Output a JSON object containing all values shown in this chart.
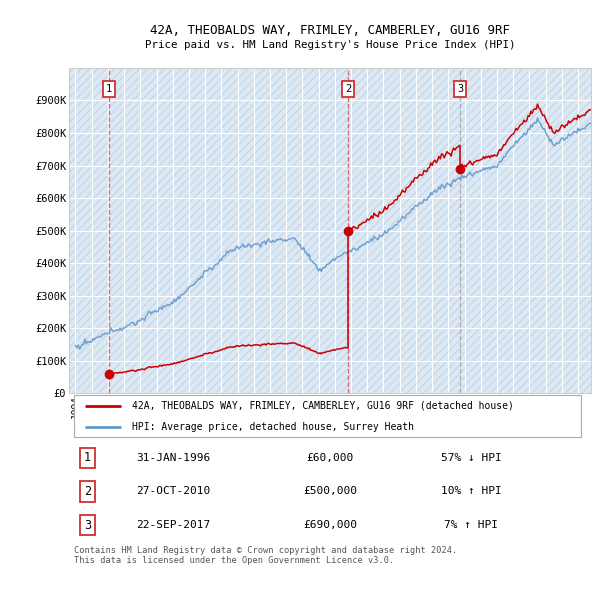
{
  "title1": "42A, THEOBALDS WAY, FRIMLEY, CAMBERLEY, GU16 9RF",
  "title2": "Price paid vs. HM Land Registry's House Price Index (HPI)",
  "ylim": [
    0,
    1000000
  ],
  "yticks": [
    0,
    100000,
    200000,
    300000,
    400000,
    500000,
    600000,
    700000,
    800000,
    900000
  ],
  "ytick_labels": [
    "£0",
    "£100K",
    "£200K",
    "£300K",
    "£400K",
    "£500K",
    "£600K",
    "£700K",
    "£800K",
    "£900K"
  ],
  "sale1_date": 1996.08,
  "sale1_price": 60000,
  "sale2_date": 2010.82,
  "sale2_price": 500000,
  "sale3_date": 2017.73,
  "sale3_price": 690000,
  "legend_red": "42A, THEOBALDS WAY, FRIMLEY, CAMBERLEY, GU16 9RF (detached house)",
  "legend_blue": "HPI: Average price, detached house, Surrey Heath",
  "table_rows": [
    {
      "num": "1",
      "date": "31-JAN-1996",
      "price": "£60,000",
      "hpi": "57% ↓ HPI"
    },
    {
      "num": "2",
      "date": "27-OCT-2010",
      "price": "£500,000",
      "hpi": "10% ↑ HPI"
    },
    {
      "num": "3",
      "date": "22-SEP-2017",
      "price": "£690,000",
      "hpi": "7% ↑ HPI"
    }
  ],
  "footer": "Contains HM Land Registry data © Crown copyright and database right 2024.\nThis data is licensed under the Open Government Licence v3.0.",
  "bg_color": "#ffffff",
  "plot_bg": "#dce9f5",
  "grid_color": "#ffffff",
  "red_color": "#cc0000",
  "blue_color": "#6699cc",
  "sale1_vline_color": "#dd4444",
  "sale23_vline_color": "#888888"
}
